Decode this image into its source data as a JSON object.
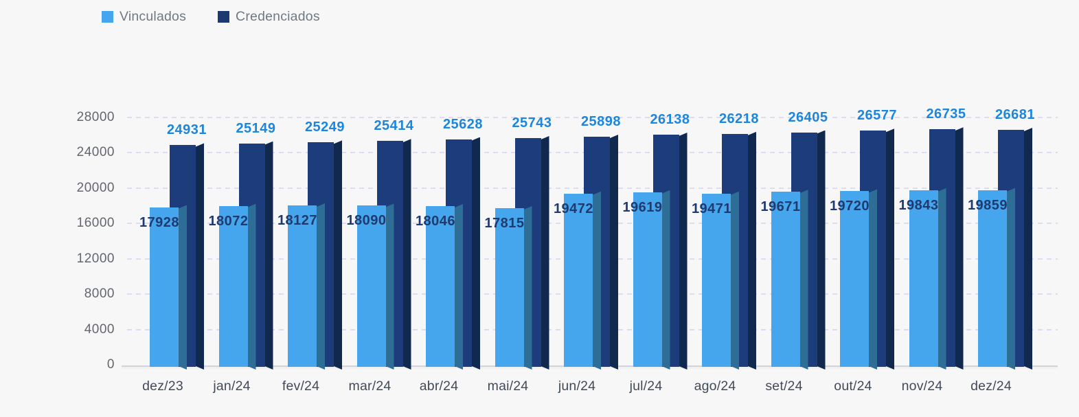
{
  "legend": {
    "items": [
      {
        "label": "Vinculados",
        "color": "#46a6ed"
      },
      {
        "label": "Credenciados",
        "color": "#1b3a70"
      }
    ]
  },
  "chart_data": {
    "type": "bar",
    "title": "",
    "xlabel": "",
    "ylabel": "",
    "ylim": [
      0,
      28000
    ],
    "yticks": [
      0,
      4000,
      8000,
      12000,
      16000,
      20000,
      24000,
      28000
    ],
    "grid": true,
    "legend_position": "top-left",
    "categories": [
      "dez/23",
      "jan/24",
      "fev/24",
      "mar/24",
      "abr/24",
      "mai/24",
      "jun/24",
      "jul/24",
      "ago/24",
      "set/24",
      "out/24",
      "nov/24",
      "dez/24"
    ],
    "series": [
      {
        "name": "Vinculados",
        "face_color": "#46a6ed",
        "side_color": "#2e6d96",
        "label_color": "#1f3a6e",
        "values": [
          17928,
          18072,
          18127,
          18090,
          18046,
          17815,
          19472,
          19619,
          19471,
          19671,
          19720,
          19843,
          19859
        ]
      },
      {
        "name": "Credenciados",
        "face_color": "#1d3c7c",
        "side_color": "#12294f",
        "label_color": "#1c86dc",
        "values": [
          24931,
          25149,
          25249,
          25414,
          25628,
          25743,
          25898,
          26138,
          26218,
          26405,
          26577,
          26735,
          26681
        ]
      }
    ]
  },
  "style": {
    "background": "#f7f7f8",
    "gridline_color": "#dcd9f0",
    "axis_line_color": "#d3d3d9",
    "ytick_color": "#63666e",
    "xtick_color": "#414b57",
    "legend_text_color": "#6f7983"
  }
}
